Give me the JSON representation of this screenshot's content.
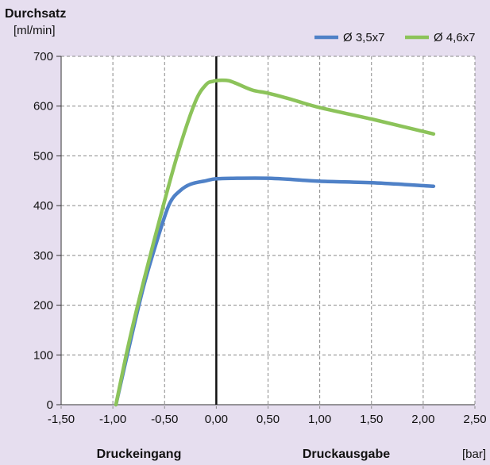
{
  "chart_data": {
    "type": "line",
    "title": "Durchsatz",
    "ylabel": "[ml/min]",
    "xunit": "[bar]",
    "x_left_label": "Druckeingang",
    "x_right_label": "Druckausgabe",
    "xlim": [
      -1.5,
      2.5
    ],
    "ylim": [
      0,
      700
    ],
    "xticks": [
      -1.5,
      -1.0,
      -0.5,
      0.0,
      0.5,
      1.0,
      1.5,
      2.0,
      2.5
    ],
    "xtick_labels": [
      "-1,50",
      "-1,00",
      "-0,50",
      "0,00",
      "0,50",
      "1,00",
      "1,50",
      "2,00",
      "2,50"
    ],
    "yticks": [
      0,
      100,
      200,
      300,
      400,
      500,
      600,
      700
    ],
    "ytick_labels": [
      "0",
      "100",
      "200",
      "300",
      "400",
      "500",
      "600",
      "700"
    ],
    "grid": true,
    "legend_position": "top-right",
    "series": [
      {
        "name": "Ø 3,5x7",
        "color": "#4f81c7",
        "x": [
          -0.97,
          -0.85,
          -0.7,
          -0.55,
          -0.45,
          -0.35,
          -0.25,
          -0.1,
          0.0,
          0.2,
          0.5,
          0.7,
          1.0,
          1.5,
          2.1
        ],
        "y": [
          0,
          110,
          240,
          345,
          405,
          430,
          443,
          450,
          454,
          455,
          455,
          453,
          449,
          446,
          439
        ]
      },
      {
        "name": "Ø 4,6x7",
        "color": "#8cc35a",
        "x": [
          -0.97,
          -0.85,
          -0.7,
          -0.5,
          -0.35,
          -0.2,
          -0.1,
          -0.03,
          0.05,
          0.12,
          0.2,
          0.35,
          0.5,
          0.7,
          1.0,
          1.5,
          2.1
        ],
        "y": [
          0,
          120,
          250,
          410,
          520,
          610,
          643,
          650,
          652,
          651,
          645,
          632,
          626,
          615,
          597,
          574,
          544
        ]
      }
    ]
  }
}
